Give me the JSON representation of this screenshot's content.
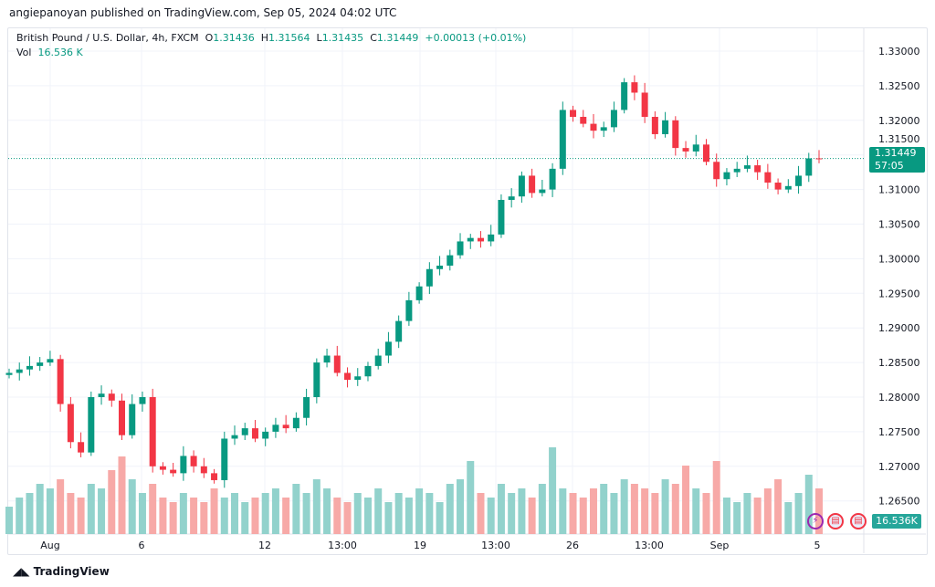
{
  "publisher_line": "angiepanoyan published on TradingView.com, Sep 05, 2024 04:02 UTC",
  "legend": {
    "symbol": "British Pound / U.S. Dollar, 4h, FXCM",
    "o_label": "O",
    "o": "1.31436",
    "h_label": "H",
    "h": "1.31564",
    "l_label": "L",
    "l": "1.31435",
    "c_label": "C",
    "c": "1.31449",
    "change": "+0.00013 (+0.01%)",
    "vol_label": "Vol",
    "vol": "16.536 K"
  },
  "price_badge": {
    "price": "1.31449",
    "countdown": "57:05"
  },
  "volume_badge": "16.536K",
  "footer": "TradingView",
  "colors": {
    "up": "#089981",
    "down": "#f23645",
    "vol_up": "#92d2cc",
    "vol_down": "#f7a9a7"
  },
  "chart_data": {
    "type": "candlestick",
    "title": "British Pound / U.S. Dollar, 4h, FXCM",
    "ylim": [
      1.265,
      1.33
    ],
    "y_ticks": [
      "1.33000",
      "1.32500",
      "1.32000",
      "1.31500",
      "1.31000",
      "1.30500",
      "1.30000",
      "1.29500",
      "1.29000",
      "1.28500",
      "1.28000",
      "1.27500",
      "1.27000",
      "1.26500"
    ],
    "x_ticks": [
      "Aug",
      "6",
      "12",
      "13:00",
      "19",
      "13:00",
      "26",
      "13:00",
      "Sep",
      "5"
    ],
    "closes": [
      1.2835,
      1.284,
      1.2845,
      1.285,
      1.2855,
      1.279,
      1.2735,
      1.272,
      1.28,
      1.2805,
      1.2795,
      1.2745,
      1.279,
      1.28,
      1.27,
      1.2695,
      1.269,
      1.2715,
      1.27,
      1.269,
      1.268,
      1.274,
      1.2745,
      1.2755,
      1.274,
      1.275,
      1.276,
      1.2755,
      1.277,
      1.28,
      1.285,
      1.286,
      1.2835,
      1.2825,
      1.283,
      1.2845,
      1.286,
      1.288,
      1.291,
      1.294,
      1.296,
      1.2985,
      1.299,
      1.3005,
      1.3025,
      1.303,
      1.3025,
      1.3035,
      1.3085,
      1.309,
      1.312,
      1.3095,
      1.31,
      1.313,
      1.3215,
      1.3205,
      1.3195,
      1.3185,
      1.319,
      1.3215,
      1.3255,
      1.324,
      1.3205,
      1.318,
      1.32,
      1.316,
      1.3155,
      1.3165,
      1.314,
      1.3115,
      1.3125,
      1.313,
      1.3135,
      1.3125,
      1.311,
      1.31,
      1.3105,
      1.312,
      1.3145,
      1.31449
    ],
    "volume_relative": [
      30,
      40,
      45,
      55,
      50,
      60,
      45,
      40,
      55,
      50,
      70,
      85,
      60,
      45,
      55,
      40,
      35,
      45,
      40,
      35,
      50,
      40,
      45,
      35,
      40,
      45,
      50,
      40,
      55,
      45,
      60,
      50,
      40,
      35,
      45,
      40,
      50,
      35,
      45,
      40,
      50,
      45,
      35,
      55,
      60,
      80,
      45,
      40,
      55,
      45,
      50,
      40,
      55,
      95,
      50,
      45,
      40,
      50,
      55,
      45,
      60,
      55,
      50,
      45,
      60,
      55,
      75,
      50,
      45,
      80,
      40,
      35,
      45,
      40,
      50,
      60,
      35,
      45,
      65,
      50
    ]
  }
}
